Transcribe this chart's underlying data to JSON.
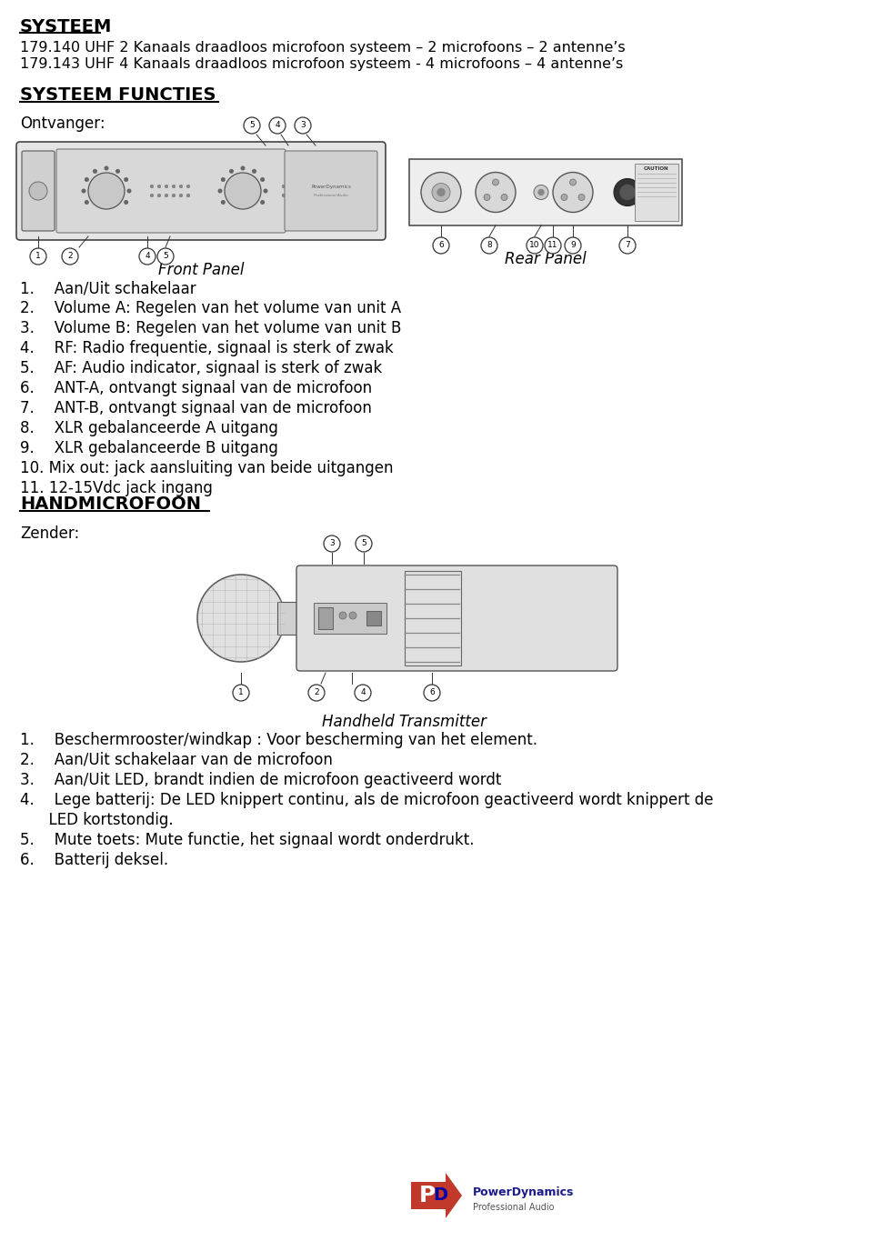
{
  "bg_color": "#ffffff",
  "text_color": "#000000",
  "title": "SYSTEEM",
  "line1": "179.140 UHF 2 Kanaals draadloos microfoon systeem – 2 microfoons – 2 antenne’s",
  "line2": "179.143 UHF 4 Kanaals draadloos microfoon systeem - 4 microfoons – 4 antenne’s",
  "section1": "SYSTEEM FUNCTIES",
  "ontvanger": "Ontvanger:",
  "front_panel": "Front Panel",
  "rear_panel": "Rear Panel",
  "receiver_items": [
    "1.  Aan/Uit schakelaar",
    "2.  Volume A: Regelen van het volume van unit A",
    "3.  Volume B: Regelen van het volume van unit B",
    "4.  RF: Radio frequentie, signaal is sterk of zwak",
    "5.  AF: Audio indicator, signaal is sterk of zwak",
    "6.  ANT-A, ontvangt signaal van de microfoon",
    "7.  ANT-B, ontvangt signaal van de microfoon",
    "8.  XLR gebalanceerde A uitgang",
    "9.  XLR gebalanceerde B uitgang",
    "10. Mix out: jack aansluiting van beide uitgangen",
    "11. 12-15Vdc jack ingang"
  ],
  "section2": "HANDMICROFOON",
  "zender": "Zender:",
  "handheld_label": "Handheld Transmitter",
  "handheld_items": [
    "1.  Beschermrooster/windkap : Voor bescherming van het element.",
    "2.  Aan/Uit schakelaar van de microfoon",
    "3.  Aan/Uit LED, brandt indien de microfoon geactiveerd wordt",
    "4.  Lege batterij: De LED knippert continu, als de microfoon geactiveerd wordt knippert de",
    "      LED kortstondig.",
    "5.  Mute toets: Mute functie, het signaal wordt onderdrukt.",
    "6.  Batterij deksel."
  ]
}
